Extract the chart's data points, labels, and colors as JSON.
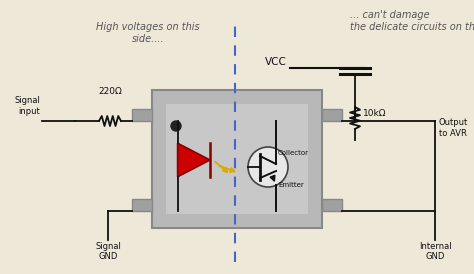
{
  "bg_color": "#ede8d8",
  "box_color": "#b8b8b8",
  "box_edge": "#888888",
  "pin_color": "#a0a0a0",
  "inner_color": "#c8c8c8",
  "line_color": "#111111",
  "dashed_color": "#4466cc",
  "led_color": "#cc0000",
  "led_edge": "#880000",
  "flash_color": "#ddaa00",
  "transistor_fill": "#e8e8e8",
  "text_color": "#111111",
  "title_left": "High voltages on this\nside....",
  "title_right": "... can't damage\nthe delicate circuits on this side",
  "label_vcc": "VCC",
  "label_220": "220Ω",
  "label_10k": "10kΩ",
  "label_signal_input": "Signal\ninput",
  "label_signal_gnd": "Signal\nGND",
  "label_output": "Output\nto AVR",
  "label_internal_gnd": "Internal\nGND",
  "label_collector": "Collector",
  "label_emitter": "Emitter",
  "figw": 4.74,
  "figh": 2.74,
  "dpi": 100
}
